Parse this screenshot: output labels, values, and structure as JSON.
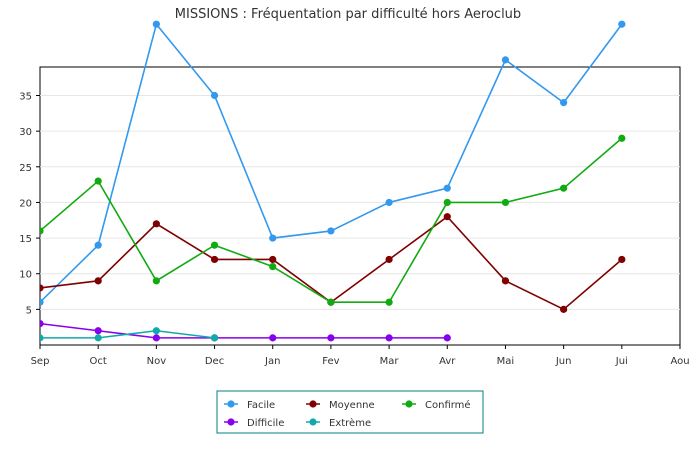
{
  "chart_data": {
    "type": "line",
    "title": "MISSIONS : Fréquentation par difficulté hors Aeroclub",
    "xlabel": "",
    "ylabel": "",
    "categories": [
      "Sep",
      "Oct",
      "Nov",
      "Dec",
      "Jan",
      "Fev",
      "Mar",
      "Avr",
      "Mai",
      "Jun",
      "Jui",
      "Aou"
    ],
    "yticks": [
      5,
      10,
      15,
      20,
      25,
      30,
      35
    ],
    "ylim": [
      0,
      39
    ],
    "grid": true,
    "legend_position": "bottom-center",
    "series": [
      {
        "name": "Facile",
        "color": "#3399ee",
        "values": [
          6,
          14,
          45,
          35,
          15,
          16,
          20,
          22,
          40,
          34,
          45,
          null
        ]
      },
      {
        "name": "Moyenne",
        "color": "#800000",
        "values": [
          8,
          9,
          17,
          12,
          12,
          6,
          12,
          18,
          9,
          5,
          12,
          null
        ]
      },
      {
        "name": "Confirmé",
        "color": "#11aa11",
        "values": [
          16,
          23,
          9,
          14,
          11,
          6,
          6,
          20,
          20,
          22,
          29,
          null
        ]
      },
      {
        "name": "Difficile",
        "color": "#8800ee",
        "values": [
          3,
          2,
          1,
          1,
          1,
          1,
          1,
          1,
          null,
          null,
          null,
          null
        ]
      },
      {
        "name": "Extrème",
        "color": "#11aaaa",
        "values": [
          1,
          1,
          2,
          1,
          null,
          null,
          null,
          null,
          null,
          null,
          null,
          null
        ]
      }
    ]
  }
}
